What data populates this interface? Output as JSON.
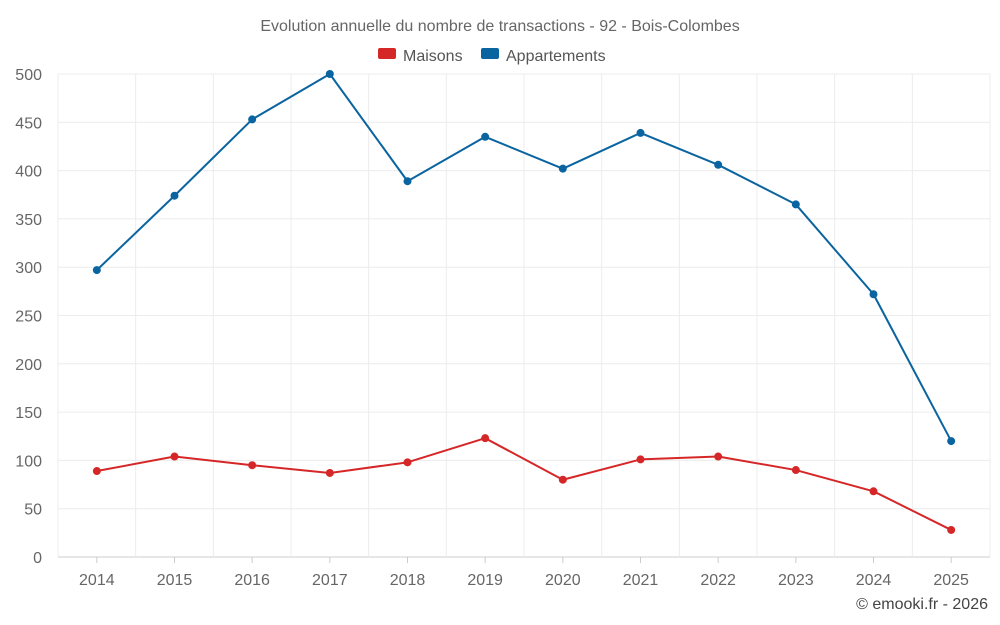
{
  "chart_data": {
    "type": "line",
    "title": "Evolution annuelle du nombre de transactions - 92 - Bois-Colombes",
    "categories": [
      "2014",
      "2015",
      "2016",
      "2017",
      "2018",
      "2019",
      "2020",
      "2021",
      "2022",
      "2023",
      "2024",
      "2025"
    ],
    "series": [
      {
        "name": "Maisons",
        "color": "#d62728",
        "values": [
          89,
          104,
          95,
          87,
          98,
          123,
          80,
          101,
          104,
          90,
          68,
          28
        ]
      },
      {
        "name": "Appartements",
        "color": "#0a64a0",
        "values": [
          297,
          374,
          453,
          500,
          389,
          435,
          402,
          439,
          406,
          365,
          272,
          120
        ]
      }
    ],
    "ylim": [
      0,
      500
    ],
    "yticks": [
      0,
      50,
      100,
      150,
      200,
      250,
      300,
      350,
      400,
      450,
      500
    ],
    "grid": true,
    "legend": "top-center",
    "xlabel": "",
    "ylabel": ""
  },
  "credit": "© emooki.fr - 2026"
}
